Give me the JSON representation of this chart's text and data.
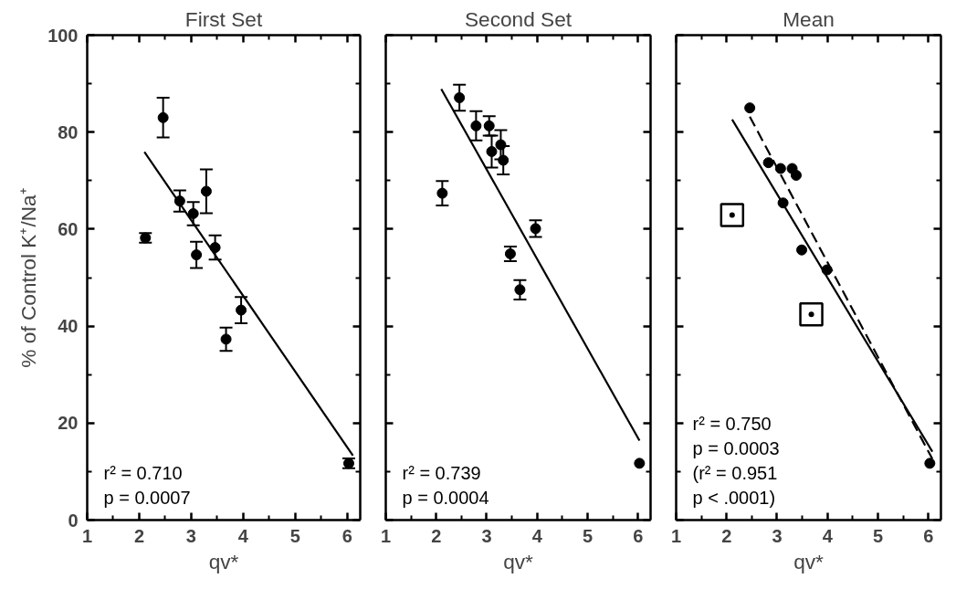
{
  "chart_data": [
    {
      "type": "scatter",
      "title": "First Set",
      "xlabel": "qv*",
      "ylabel": "% of Control K⁺/Na⁺",
      "xlim": [
        1,
        6.25
      ],
      "ylim": [
        0,
        100
      ],
      "xticks": [
        1,
        2,
        3,
        4,
        5,
        6
      ],
      "yticks": [
        0,
        20,
        40,
        60,
        80,
        100
      ],
      "grid": false,
      "marker": "circle",
      "annotations": [
        "r² = 0.710",
        "p = 0.0007"
      ],
      "series": [
        {
          "color": "#000000",
          "x": [
            2.12,
            2.46,
            2.78,
            3.04,
            3.1,
            3.29,
            3.46,
            3.67,
            3.96,
            6.03
          ],
          "values": [
            58.2,
            83.0,
            65.8,
            63.2,
            54.7,
            67.8,
            56.2,
            37.3,
            43.3,
            11.7
          ],
          "errors": [
            1,
            4.1,
            2.2,
            2.4,
            2.7,
            4.5,
            2.5,
            2.4,
            2.7,
            1
          ]
        },
        {
          "type": "line",
          "marker": "none",
          "color": "#000000",
          "line_style": "solid",
          "x": [
            2.1,
            6.11
          ],
          "values": [
            75.9,
            13.3
          ]
        }
      ]
    },
    {
      "type": "scatter",
      "title": "Second Set",
      "xlabel": "qv*",
      "xlim": [
        1,
        6.25
      ],
      "ylim": [
        0,
        100
      ],
      "xticks": [
        1,
        2,
        3,
        4,
        5,
        6
      ],
      "yticks": [
        0,
        20,
        40,
        60,
        80,
        100
      ],
      "tick_labels": "x",
      "grid": false,
      "marker": "circle",
      "annotations": [
        "r² = 0.739",
        "p = 0.0004"
      ],
      "series": [
        {
          "color": "#000000",
          "x": [
            2.12,
            2.46,
            2.79,
            3.05,
            3.1,
            3.28,
            3.33,
            3.47,
            3.66,
            3.97,
            6.03
          ],
          "values": [
            67.4,
            87.1,
            81.3,
            81.3,
            76.0,
            77.4,
            74.2,
            54.9,
            47.5,
            60.1,
            11.7
          ],
          "errors": [
            2.5,
            2.7,
            3,
            2,
            3.3,
            3,
            2.9,
            1.5,
            2,
            1.7,
            null
          ]
        },
        {
          "type": "line",
          "marker": "none",
          "color": "#000000",
          "line_style": "solid",
          "x": [
            2.1,
            6.03
          ],
          "values": [
            88.9,
            16.4
          ]
        }
      ]
    },
    {
      "type": "scatter",
      "title": "Mean",
      "xlabel": "qv*",
      "xlim": [
        1,
        6.25
      ],
      "ylim": [
        0,
        100
      ],
      "xticks": [
        1,
        2,
        3,
        4,
        5,
        6
      ],
      "yticks": [
        0,
        20,
        40,
        60,
        80,
        100
      ],
      "tick_labels": "x",
      "grid": false,
      "marker": "circle",
      "annotations": [
        "r² = 0.750",
        "p = 0.0003",
        "(r² = 0.951",
        "p < .0001)"
      ],
      "series": [
        {
          "color": "#000000",
          "x": [
            2.46,
            2.83,
            3.07,
            3.3,
            3.38,
            3.12,
            3.49,
            3.99,
            6.03
          ],
          "values": [
            85.0,
            73.7,
            72.5,
            72.5,
            71.1,
            65.4,
            55.7,
            51.6,
            11.7
          ]
        },
        {
          "marker": "square",
          "color": "#000000",
          "x": [
            2.11,
            3.68
          ],
          "values": [
            62.9,
            42.4
          ]
        },
        {
          "type": "line",
          "marker": "none",
          "color": "#000000",
          "line_style": "solid",
          "x": [
            2.11,
            6.08
          ],
          "values": [
            82.6,
            14.1
          ]
        },
        {
          "type": "line",
          "marker": "none",
          "color": "#000000",
          "line_style": "dashed",
          "x": [
            2.46,
            6.08
          ],
          "values": [
            83.2,
            12.6
          ]
        }
      ]
    }
  ]
}
